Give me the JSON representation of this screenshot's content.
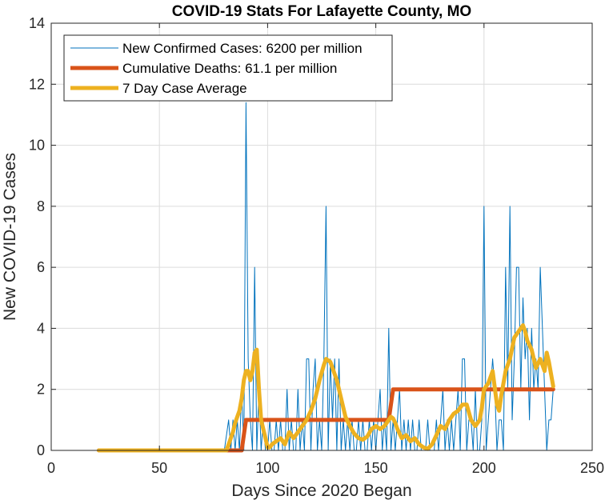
{
  "chart_data": {
    "type": "line",
    "title": "COVID-19 Stats For Lafayette County, MO",
    "xlabel": "Days Since 2020 Began",
    "ylabel": "New COVID-19 Cases",
    "xlim": [
      0,
      250
    ],
    "ylim": [
      0,
      14
    ],
    "xticks": [
      0,
      50,
      100,
      150,
      200,
      250
    ],
    "yticks": [
      0,
      2,
      4,
      6,
      8,
      10,
      12,
      14
    ],
    "grid": true,
    "legend_position": "top-left",
    "series": [
      {
        "name": "New Confirmed Cases: 6200 per million",
        "color": "#0072bd",
        "x": [
          22,
          80,
          82,
          83,
          84,
          85,
          86,
          87,
          88,
          89,
          90,
          91,
          92,
          93,
          94,
          95,
          96,
          97,
          98,
          99,
          100,
          101,
          102,
          103,
          104,
          105,
          106,
          107,
          108,
          109,
          110,
          111,
          112,
          113,
          114,
          115,
          116,
          117,
          118,
          119,
          120,
          121,
          122,
          123,
          124,
          125,
          126,
          127,
          128,
          129,
          130,
          131,
          132,
          133,
          134,
          135,
          136,
          137,
          138,
          139,
          140,
          141,
          142,
          143,
          144,
          145,
          146,
          147,
          148,
          149,
          150,
          151,
          152,
          153,
          154,
          155,
          156,
          157,
          158,
          159,
          160,
          161,
          162,
          163,
          164,
          165,
          166,
          167,
          168,
          169,
          170,
          171,
          172,
          173,
          174,
          175,
          176,
          177,
          178,
          179,
          180,
          181,
          182,
          183,
          184,
          185,
          186,
          187,
          188,
          189,
          190,
          191,
          192,
          193,
          194,
          195,
          196,
          197,
          198,
          199,
          200,
          201,
          202,
          203,
          204,
          205,
          206,
          207,
          208,
          209,
          210,
          211,
          212,
          213,
          214,
          215,
          216,
          217,
          218,
          219,
          220,
          221,
          222,
          223,
          224,
          225,
          226,
          227,
          228,
          229,
          230,
          231,
          232
        ],
        "values": [
          0,
          0,
          1,
          0,
          1,
          0,
          1,
          0,
          2,
          0,
          11.4,
          3,
          1,
          0,
          6,
          0,
          2,
          0,
          1,
          0,
          0,
          1,
          0,
          0,
          1,
          0,
          1,
          0,
          0,
          2,
          0,
          1,
          0,
          0,
          2,
          0,
          1,
          0,
          3,
          3,
          0,
          2,
          3,
          0,
          1,
          0,
          3,
          8,
          0,
          3,
          1,
          3,
          0,
          3,
          0,
          1,
          0,
          1,
          0,
          1,
          0,
          0,
          1,
          0,
          1,
          0,
          0,
          1,
          0,
          1,
          0,
          1,
          2,
          0,
          1,
          0,
          4,
          0,
          1,
          0,
          1,
          2,
          0,
          1,
          0,
          1,
          0,
          1,
          0,
          0,
          1,
          0,
          0,
          0,
          1,
          0,
          0,
          0,
          1,
          0,
          1,
          2,
          0,
          1,
          0,
          1,
          0,
          1,
          2,
          0,
          3,
          3,
          0,
          1,
          1,
          0,
          2,
          0,
          0,
          1,
          8,
          0,
          1,
          2,
          3,
          2,
          0,
          1,
          1,
          0,
          6,
          2,
          8,
          1,
          3,
          6,
          6,
          2,
          5,
          3,
          4,
          1,
          4,
          2,
          3,
          2,
          6,
          4,
          2,
          0,
          1,
          1,
          2
        ]
      },
      {
        "name": "Cumulative Deaths: 61.1 per million",
        "color": "#d95319",
        "x": [
          22,
          81,
          88,
          89,
          90,
          156,
          157,
          158,
          232
        ],
        "values": [
          0,
          0,
          0,
          0.5,
          1,
          1,
          1.5,
          2,
          2
        ]
      },
      {
        "name": "7 Day Case Average",
        "color": "#edb120",
        "x": [
          22,
          81,
          82,
          83,
          84,
          85,
          86,
          87,
          88,
          89,
          90,
          91,
          92,
          93,
          94,
          95,
          96,
          97,
          98,
          99,
          100,
          101,
          102,
          104,
          106,
          108,
          110,
          112,
          114,
          116,
          118,
          120,
          122,
          124,
          126,
          127,
          128,
          129,
          130,
          132,
          134,
          136,
          138,
          140,
          142,
          144,
          146,
          148,
          150,
          152,
          154,
          156,
          157,
          158,
          159,
          160,
          162,
          164,
          166,
          168,
          170,
          172,
          174,
          176,
          178,
          180,
          182,
          184,
          186,
          188,
          190,
          192,
          194,
          196,
          198,
          199,
          200,
          202,
          204,
          206,
          207,
          208,
          209,
          210,
          212,
          214,
          216,
          218,
          219,
          220,
          222,
          224,
          226,
          228,
          229,
          230,
          232
        ],
        "values": [
          0,
          0,
          0.2,
          0.4,
          0.6,
          0.9,
          1.1,
          1.3,
          1.7,
          2.3,
          2.6,
          2.6,
          2.3,
          2.6,
          3.2,
          3.3,
          2.0,
          1.0,
          0.7,
          0.4,
          0.1,
          0.1,
          0.2,
          0.3,
          0.4,
          0.2,
          0.6,
          0.4,
          0.6,
          0.8,
          1.0,
          1.3,
          1.7,
          2.3,
          2.8,
          3.0,
          2.95,
          2.9,
          2.7,
          2.3,
          1.7,
          1.1,
          0.8,
          0.55,
          0.4,
          0.35,
          0.45,
          0.7,
          0.8,
          0.7,
          0.8,
          1.0,
          1.1,
          1.05,
          0.9,
          0.7,
          0.4,
          0.5,
          0.3,
          0.4,
          0.2,
          0.1,
          0.05,
          0.2,
          0.5,
          0.8,
          0.7,
          1.0,
          1.2,
          1.3,
          1.5,
          1.5,
          1.0,
          0.8,
          1.0,
          1.4,
          2.0,
          2.2,
          2.6,
          1.5,
          1.3,
          1.8,
          2.2,
          2.6,
          3.0,
          3.7,
          3.9,
          4.1,
          3.9,
          3.6,
          3.3,
          2.7,
          3.0,
          2.6,
          3.2,
          2.9,
          2.1
        ]
      }
    ]
  }
}
